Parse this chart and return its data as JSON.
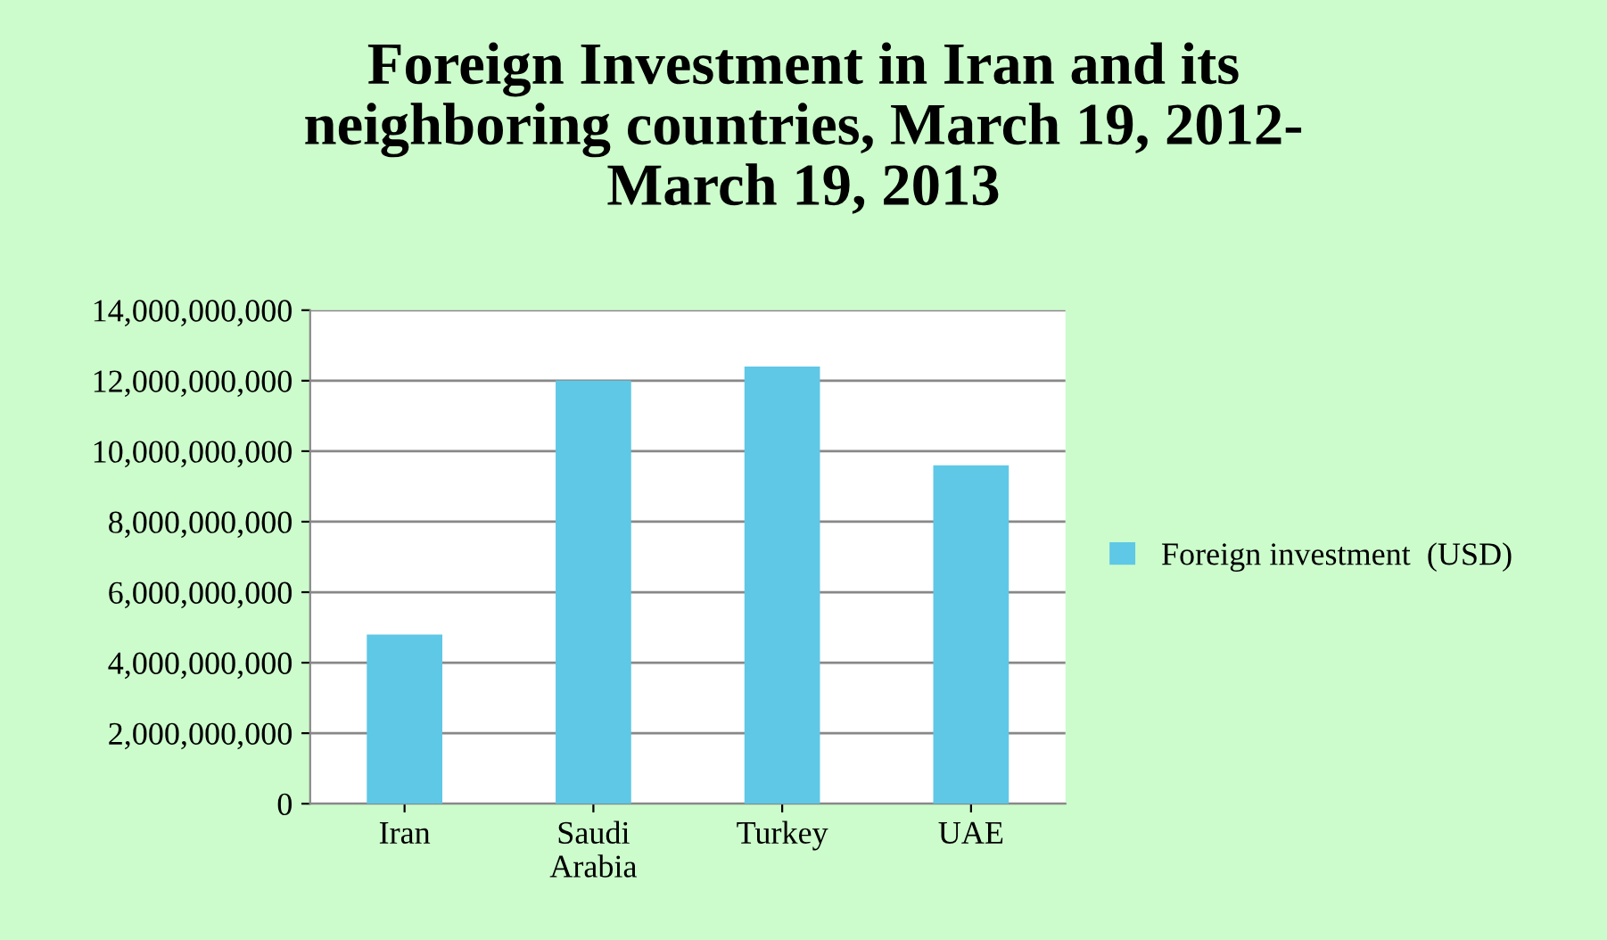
{
  "chart_data": {
    "type": "bar",
    "title": "Foreign Investment in Iran and its\nneighboring countries, March 19, 2012-\nMarch 19, 2013",
    "categories": [
      "Iran",
      "Saudi\nArabia",
      "Turkey",
      "UAE"
    ],
    "series": [
      {
        "name": "Foreign investment  (USD)",
        "color": "#5ec8e6",
        "values": [
          4800000000,
          12000000000,
          12400000000,
          9600000000
        ]
      }
    ],
    "ylim": [
      0,
      14000000000
    ],
    "yticks": [
      {
        "value": 0,
        "label": "0"
      },
      {
        "value": 2000000000,
        "label": "2,000,000,000"
      },
      {
        "value": 4000000000,
        "label": "4,000,000,000"
      },
      {
        "value": 6000000000,
        "label": "6,000,000,000"
      },
      {
        "value": 8000000000,
        "label": "8,000,000,000"
      },
      {
        "value": 10000000000,
        "label": "10,000,000,000"
      },
      {
        "value": 12000000000,
        "label": "12,000,000,000"
      },
      {
        "value": 14000000000,
        "label": "14,000,000,000"
      }
    ],
    "grid": "y",
    "legend": "right"
  }
}
